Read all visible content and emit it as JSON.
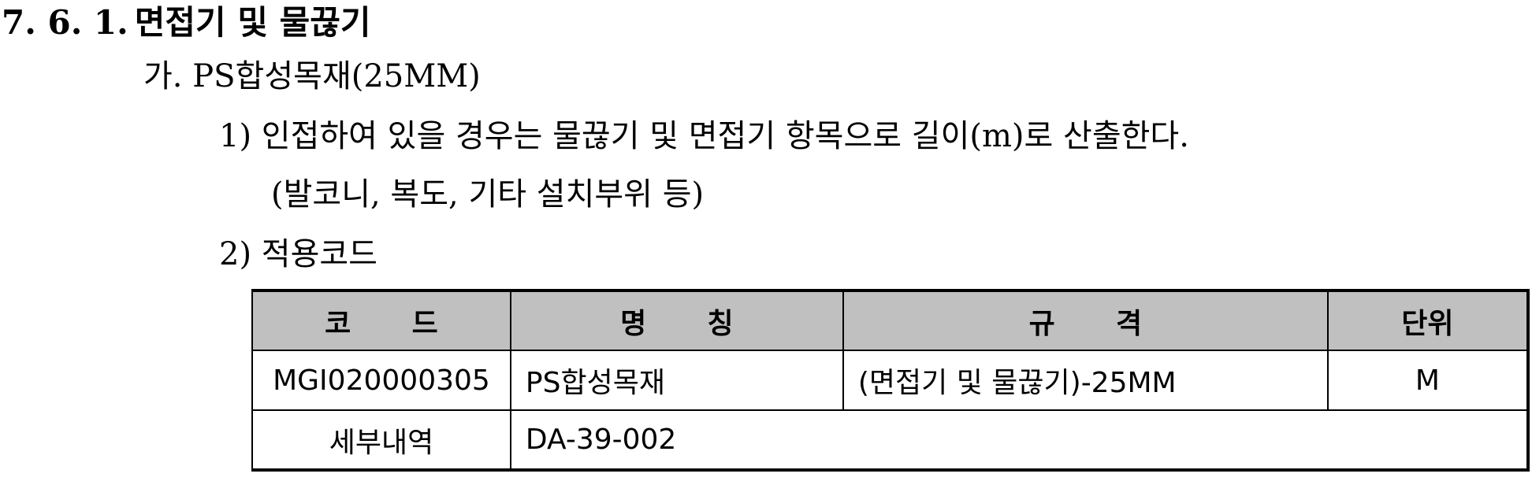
{
  "heading": {
    "number": "7. 6. 1.",
    "title": "면접기 및 물끊기"
  },
  "subheading": "가. PS합성목재(25MM)",
  "items": [
    {
      "text": "1) 인접하여 있을 경우는 물끊기 및 면접기 항목으로 길이(m)로 산출한다.",
      "continuation": "(발코니, 복도, 기타 설치부위 등)"
    },
    {
      "text": "2) 적용코드"
    }
  ],
  "table": {
    "headers": {
      "code": "코 드",
      "name": "명 칭",
      "spec": "규 격",
      "unit": "단위"
    },
    "rows": [
      {
        "code": "MGI020000305",
        "name": "PS합성목재",
        "spec": "(면접기 및 물끊기)-25MM",
        "unit": "M"
      }
    ],
    "detail": {
      "label": "세부내역",
      "value": "DA-39-002"
    }
  },
  "colors": {
    "header_background": "#c0c0c0",
    "border": "#000000",
    "text": "#000000"
  }
}
